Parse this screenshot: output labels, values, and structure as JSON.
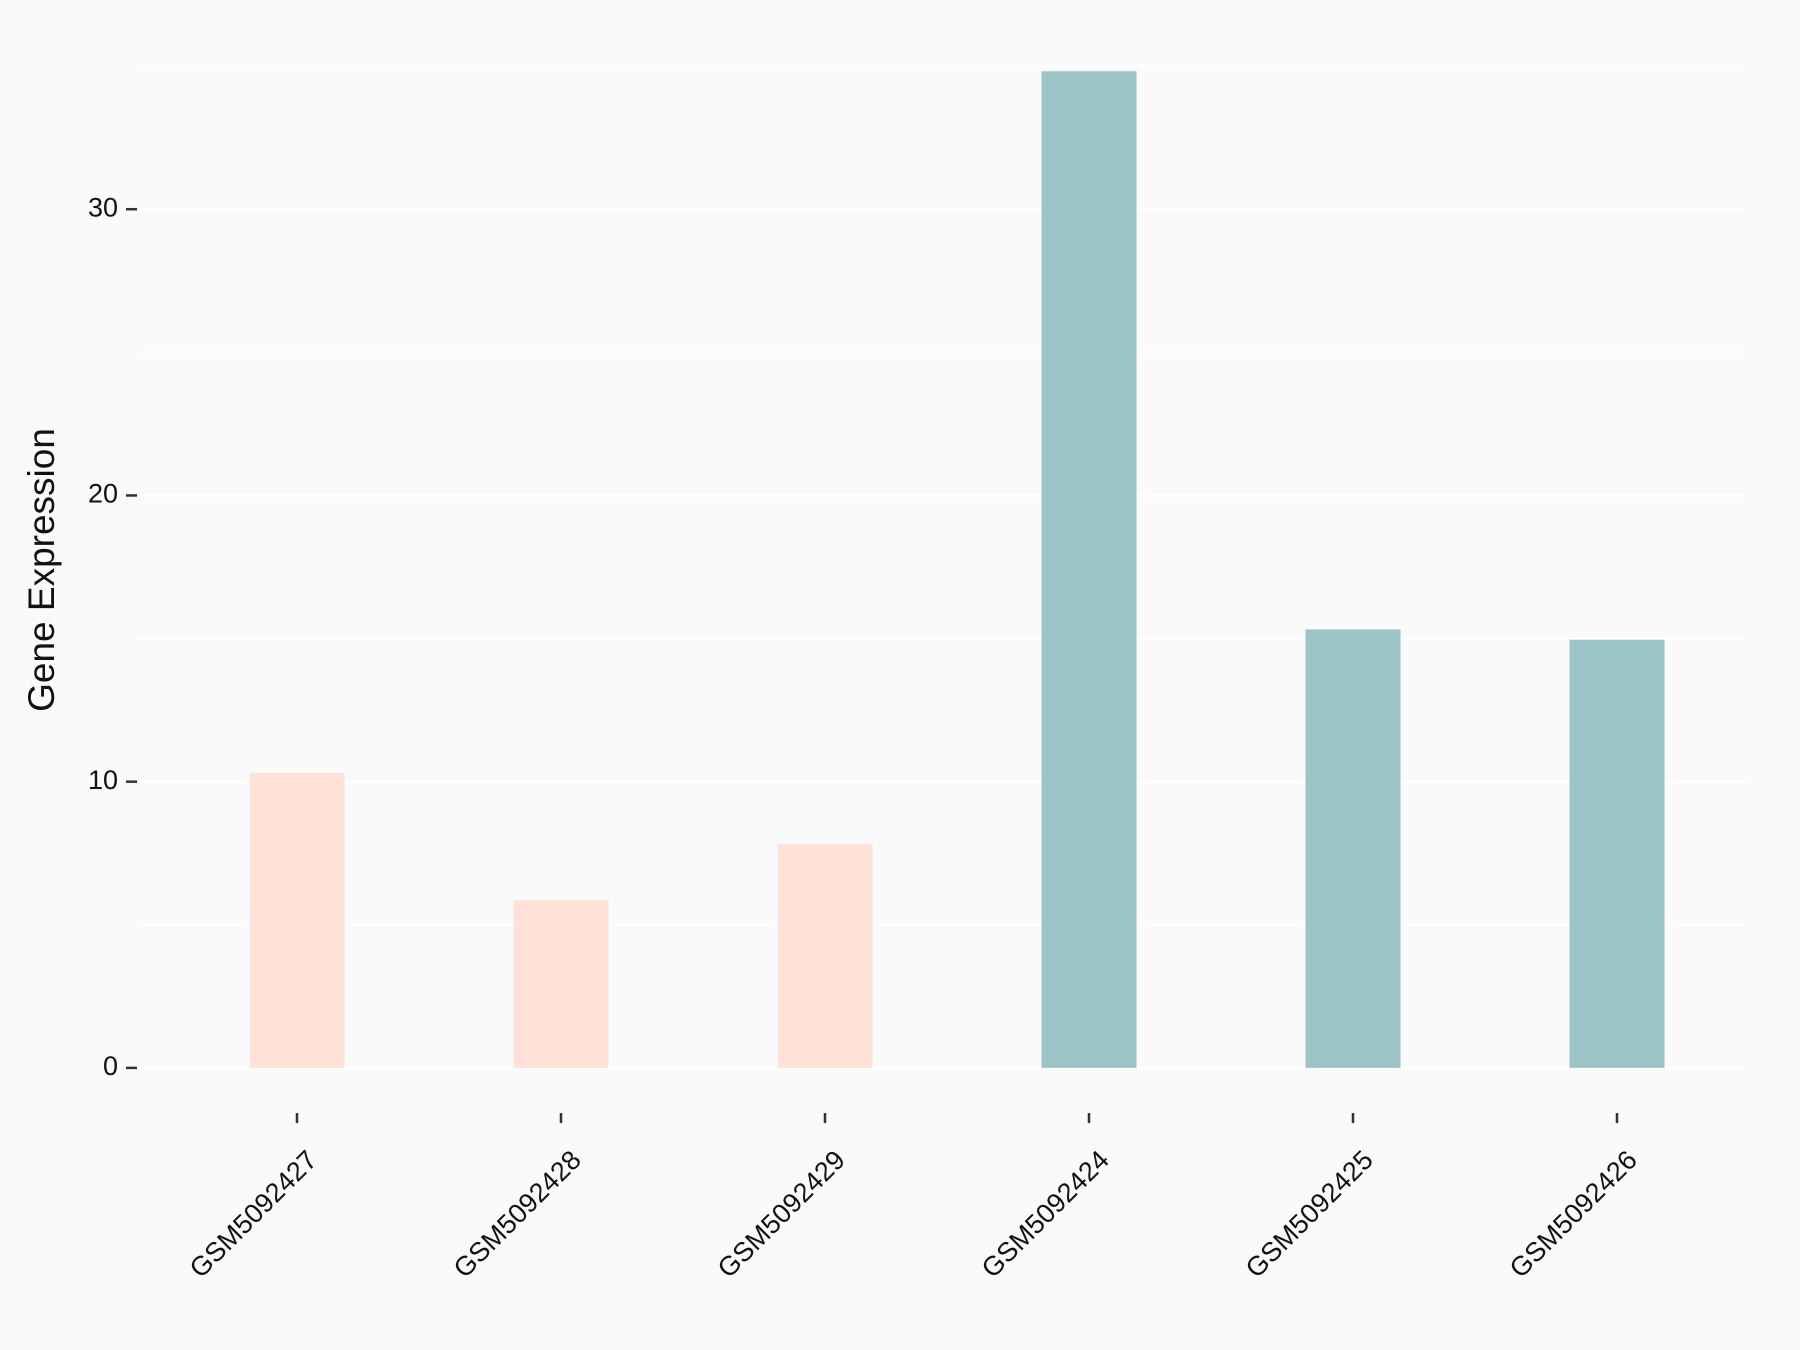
{
  "chart_data": {
    "type": "bar",
    "y_label": "Gene Expression",
    "categories": [
      "GSM5092427",
      "GSM5092428",
      "GSM5092429",
      "GSM5092424",
      "GSM5092425",
      "GSM5092426"
    ],
    "values": [
      10.31,
      5.86,
      7.82,
      34.82,
      15.32,
      14.96
    ],
    "colors": [
      "#FFE1D7",
      "#FFE1D7",
      "#FFE1D7",
      "#9DC4C7",
      "#9DC4C7",
      "#9DC4C7"
    ],
    "ylim": [
      -1.75,
      36.75
    ],
    "yticks": [
      0,
      10,
      20,
      30
    ],
    "minor_yticks": [
      5,
      15,
      25,
      35
    ],
    "grid": true
  }
}
